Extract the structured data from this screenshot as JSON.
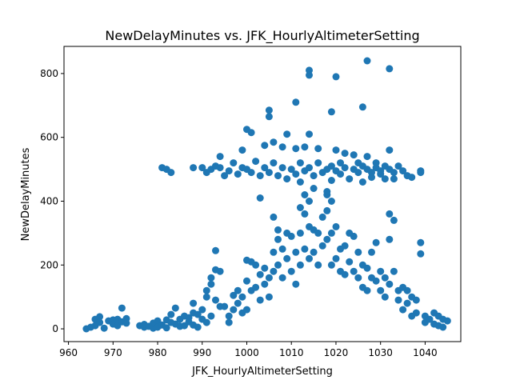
{
  "chart_data": {
    "type": "scatter",
    "title": "NewDelayMinutes vs. JFK_HourlyAltimeterSetting",
    "xlabel": "JFK_HourlyAltimeterSetting",
    "ylabel": "NewDelayMinutes",
    "xlim": [
      959,
      1048
    ],
    "ylim": [
      -40,
      885
    ],
    "xticks": [
      960,
      970,
      980,
      990,
      1000,
      1010,
      1020,
      1030,
      1040
    ],
    "yticks": [
      0,
      200,
      400,
      600,
      800
    ],
    "grid": false,
    "legend": "none",
    "color": "#1f77b4",
    "points": [
      [
        964,
        0
      ],
      [
        965,
        5
      ],
      [
        966,
        30
      ],
      [
        966,
        10
      ],
      [
        967,
        38
      ],
      [
        967,
        20
      ],
      [
        968,
        2
      ],
      [
        969,
        25
      ],
      [
        970,
        28
      ],
      [
        970,
        15
      ],
      [
        971,
        30
      ],
      [
        971,
        10
      ],
      [
        972,
        22
      ],
      [
        972,
        65
      ],
      [
        973,
        32
      ],
      [
        973,
        18
      ],
      [
        976,
        10
      ],
      [
        977,
        14
      ],
      [
        977,
        5
      ],
      [
        978,
        8
      ],
      [
        979,
        2
      ],
      [
        979,
        18
      ],
      [
        980,
        25
      ],
      [
        980,
        5
      ],
      [
        981,
        12
      ],
      [
        982,
        28
      ],
      [
        982,
        3
      ],
      [
        983,
        20
      ],
      [
        983,
        45
      ],
      [
        984,
        65
      ],
      [
        984,
        15
      ],
      [
        985,
        30
      ],
      [
        985,
        8
      ],
      [
        986,
        40
      ],
      [
        986,
        10
      ],
      [
        987,
        35
      ],
      [
        987,
        22
      ],
      [
        988,
        80
      ],
      [
        988,
        50
      ],
      [
        988,
        12
      ],
      [
        989,
        45
      ],
      [
        989,
        5
      ],
      [
        990,
        60
      ],
      [
        990,
        30
      ],
      [
        991,
        120
      ],
      [
        991,
        100
      ],
      [
        991,
        20
      ],
      [
        992,
        140
      ],
      [
        992,
        160
      ],
      [
        992,
        40
      ],
      [
        993,
        185
      ],
      [
        993,
        245
      ],
      [
        993,
        90
      ],
      [
        994,
        180
      ],
      [
        994,
        70
      ],
      [
        995,
        70
      ],
      [
        996,
        40
      ],
      [
        996,
        20
      ],
      [
        997,
        105
      ],
      [
        997,
        60
      ],
      [
        998,
        120
      ],
      [
        998,
        80
      ],
      [
        999,
        100
      ],
      [
        999,
        50
      ],
      [
        1000,
        215
      ],
      [
        1000,
        150
      ],
      [
        1000,
        60
      ],
      [
        1001,
        210
      ],
      [
        1001,
        120
      ],
      [
        1002,
        200
      ],
      [
        1002,
        130
      ],
      [
        1003,
        170
      ],
      [
        1003,
        90
      ],
      [
        1004,
        190
      ],
      [
        1004,
        140
      ],
      [
        1005,
        160
      ],
      [
        1005,
        100
      ],
      [
        1006,
        350
      ],
      [
        1006,
        240
      ],
      [
        1006,
        180
      ],
      [
        1007,
        280
      ],
      [
        1007,
        310
      ],
      [
        1007,
        200
      ],
      [
        1008,
        250
      ],
      [
        1008,
        160
      ],
      [
        1009,
        300
      ],
      [
        1009,
        220
      ],
      [
        1010,
        290
      ],
      [
        1010,
        180
      ],
      [
        1011,
        240
      ],
      [
        1011,
        140
      ],
      [
        1012,
        380
      ],
      [
        1012,
        300
      ],
      [
        1012,
        200
      ],
      [
        1013,
        420
      ],
      [
        1013,
        360
      ],
      [
        1013,
        250
      ],
      [
        1014,
        400
      ],
      [
        1014,
        320
      ],
      [
        1014,
        220
      ],
      [
        1015,
        310
      ],
      [
        1015,
        240
      ],
      [
        1016,
        300
      ],
      [
        1016,
        200
      ],
      [
        1017,
        350
      ],
      [
        1017,
        260
      ],
      [
        1018,
        420
      ],
      [
        1018,
        370
      ],
      [
        1018,
        280
      ],
      [
        1019,
        400
      ],
      [
        1019,
        300
      ],
      [
        1019,
        200
      ],
      [
        1020,
        320
      ],
      [
        1020,
        220
      ],
      [
        1021,
        250
      ],
      [
        1021,
        180
      ],
      [
        1022,
        260
      ],
      [
        1022,
        170
      ],
      [
        1023,
        300
      ],
      [
        1023,
        210
      ],
      [
        1024,
        290
      ],
      [
        1024,
        180
      ],
      [
        1025,
        240
      ],
      [
        1025,
        160
      ],
      [
        1026,
        200
      ],
      [
        1026,
        130
      ],
      [
        1027,
        190
      ],
      [
        1027,
        120
      ],
      [
        1028,
        240
      ],
      [
        1028,
        160
      ],
      [
        1029,
        270
      ],
      [
        1029,
        150
      ],
      [
        1030,
        180
      ],
      [
        1030,
        120
      ],
      [
        1031,
        160
      ],
      [
        1031,
        100
      ],
      [
        1032,
        360
      ],
      [
        1032,
        280
      ],
      [
        1032,
        140
      ],
      [
        1033,
        340
      ],
      [
        1033,
        180
      ],
      [
        1034,
        120
      ],
      [
        1034,
        90
      ],
      [
        1035,
        130
      ],
      [
        1035,
        60
      ],
      [
        1036,
        120
      ],
      [
        1036,
        80
      ],
      [
        1037,
        100
      ],
      [
        1037,
        40
      ],
      [
        1038,
        90
      ],
      [
        1038,
        50
      ],
      [
        1039,
        270
      ],
      [
        1039,
        235
      ],
      [
        1040,
        40
      ],
      [
        1040,
        20
      ],
      [
        1041,
        30
      ],
      [
        1042,
        50
      ],
      [
        1042,
        15
      ],
      [
        1043,
        40
      ],
      [
        1043,
        10
      ],
      [
        1044,
        30
      ],
      [
        1044,
        5
      ],
      [
        1045,
        25
      ],
      [
        981,
        505
      ],
      [
        982,
        500
      ],
      [
        983,
        490
      ],
      [
        988,
        505
      ],
      [
        990,
        505
      ],
      [
        991,
        490
      ],
      [
        992,
        500
      ],
      [
        993,
        510
      ],
      [
        994,
        505
      ],
      [
        994,
        540
      ],
      [
        995,
        480
      ],
      [
        996,
        495
      ],
      [
        997,
        520
      ],
      [
        998,
        485
      ],
      [
        999,
        505
      ],
      [
        999,
        560
      ],
      [
        1000,
        500
      ],
      [
        1001,
        490
      ],
      [
        1002,
        525
      ],
      [
        1003,
        480
      ],
      [
        1003,
        410
      ],
      [
        1004,
        505
      ],
      [
        1004,
        575
      ],
      [
        1005,
        490
      ],
      [
        1006,
        520
      ],
      [
        1006,
        585
      ],
      [
        1007,
        480
      ],
      [
        1008,
        505
      ],
      [
        1008,
        570
      ],
      [
        1009,
        470
      ],
      [
        1009,
        610
      ],
      [
        1010,
        500
      ],
      [
        1011,
        485
      ],
      [
        1011,
        565
      ],
      [
        1012,
        520
      ],
      [
        1012,
        460
      ],
      [
        1013,
        495
      ],
      [
        1013,
        570
      ],
      [
        1014,
        505
      ],
      [
        1014,
        610
      ],
      [
        1015,
        480
      ],
      [
        1015,
        440
      ],
      [
        1016,
        520
      ],
      [
        1016,
        565
      ],
      [
        1017,
        490
      ],
      [
        1018,
        500
      ],
      [
        1018,
        430
      ],
      [
        1019,
        510
      ],
      [
        1019,
        465
      ],
      [
        1020,
        495
      ],
      [
        1020,
        560
      ],
      [
        1021,
        485
      ],
      [
        1021,
        520
      ],
      [
        1022,
        505
      ],
      [
        1022,
        550
      ],
      [
        1023,
        470
      ],
      [
        1024,
        500
      ],
      [
        1024,
        545
      ],
      [
        1025,
        490
      ],
      [
        1025,
        520
      ],
      [
        1026,
        510
      ],
      [
        1026,
        460
      ],
      [
        1027,
        500
      ],
      [
        1027,
        540
      ],
      [
        1028,
        490
      ],
      [
        1028,
        475
      ],
      [
        1029,
        505
      ],
      [
        1029,
        520
      ],
      [
        1030,
        485
      ],
      [
        1030,
        495
      ],
      [
        1031,
        510
      ],
      [
        1031,
        470
      ],
      [
        1032,
        500
      ],
      [
        1032,
        560
      ],
      [
        1033,
        490
      ],
      [
        1033,
        470
      ],
      [
        1034,
        510
      ],
      [
        1035,
        495
      ],
      [
        1036,
        480
      ],
      [
        1037,
        475
      ],
      [
        1039,
        495
      ],
      [
        1039,
        490
      ],
      [
        1000,
        625
      ],
      [
        1001,
        615
      ],
      [
        1005,
        685
      ],
      [
        1005,
        665
      ],
      [
        1011,
        710
      ],
      [
        1014,
        810
      ],
      [
        1014,
        795
      ],
      [
        1019,
        680
      ],
      [
        1020,
        790
      ],
      [
        1026,
        695
      ],
      [
        1027,
        840
      ],
      [
        1032,
        815
      ]
    ]
  }
}
